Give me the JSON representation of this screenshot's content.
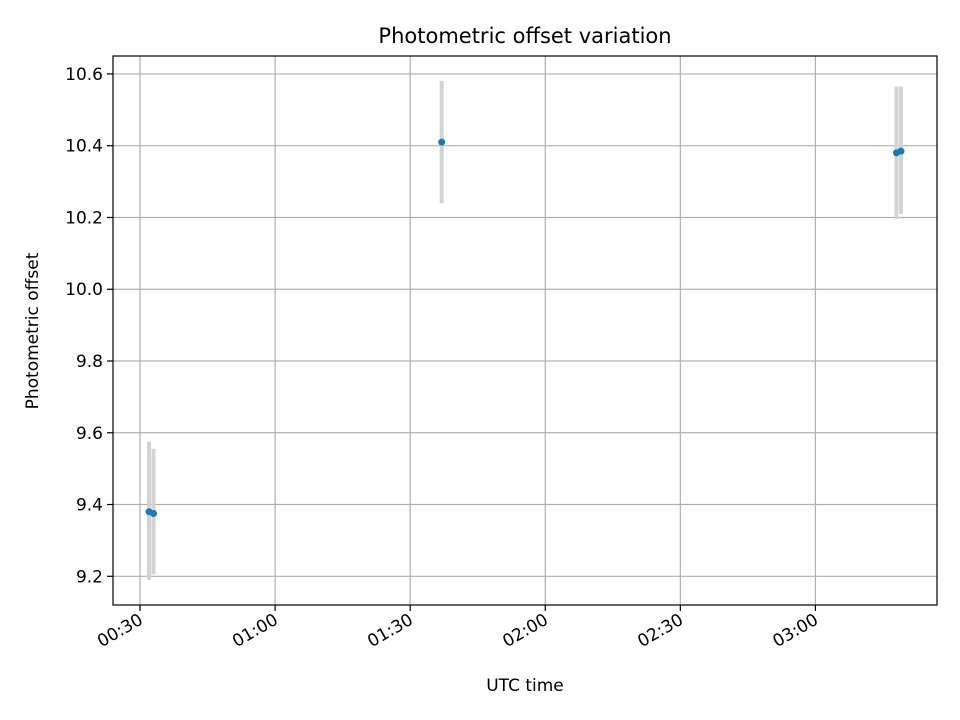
{
  "chart_data": {
    "type": "scatter",
    "title": "Photometric offset variation",
    "xlabel": "UTC time",
    "ylabel": "Photometric offset",
    "xlim": [
      "00:24",
      "03:27"
    ],
    "ylim": [
      9.12,
      10.65
    ],
    "x_ticks": [
      "00:30",
      "01:00",
      "01:30",
      "02:00",
      "02:30",
      "03:00"
    ],
    "y_ticks": [
      "9.2",
      "9.4",
      "9.6",
      "9.8",
      "10.0",
      "10.2",
      "10.4",
      "10.6"
    ],
    "grid": true,
    "marker_color": "#1f77b4",
    "errorbar_color": "#d3d3d3",
    "points": [
      {
        "x": "00:32",
        "y": 9.38,
        "yerr_low": 9.19,
        "yerr_high": 9.575
      },
      {
        "x": "00:33",
        "y": 9.375,
        "yerr_low": 9.205,
        "yerr_high": 9.555
      },
      {
        "x": "01:37",
        "y": 10.41,
        "yerr_low": 10.24,
        "yerr_high": 10.58
      },
      {
        "x": "03:18",
        "y": 10.38,
        "yerr_low": 10.195,
        "yerr_high": 10.565
      },
      {
        "x": "03:19",
        "y": 10.385,
        "yerr_low": 10.21,
        "yerr_high": 10.565
      }
    ]
  }
}
